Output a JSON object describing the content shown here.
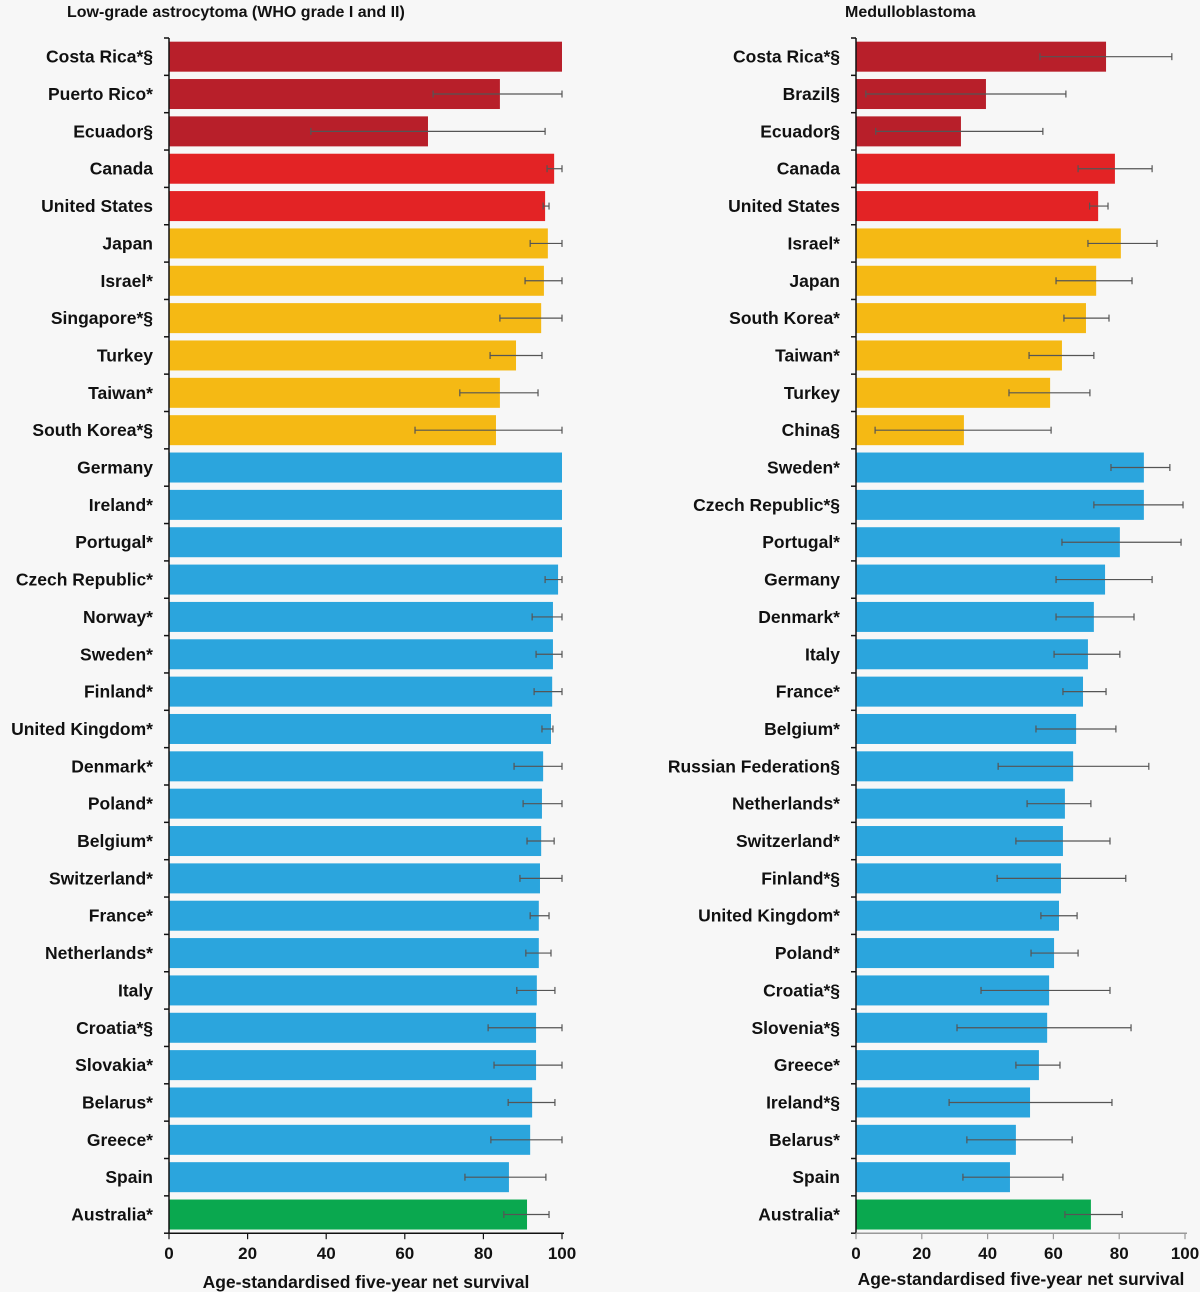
{
  "colors": {
    "dark_red": "#b81f2a",
    "red": "#e32325",
    "gold": "#f5b914",
    "blue": "#2ba5dd",
    "green": "#0aa84f",
    "error_bar": "#555555",
    "axis": "#111111"
  },
  "chart_data": [
    {
      "type": "bar",
      "orientation": "horizontal",
      "title": "Low-grade astrocytoma (WHO grade I and II)",
      "xlabel": "Age-standardised five-year net survival",
      "ylabel": "",
      "xlim": [
        0,
        100
      ],
      "xticks": [
        "0",
        "20",
        "40",
        "60",
        "80",
        "100"
      ],
      "grid": false,
      "legend": "none",
      "categories": [
        "Costa Rica*§",
        "Puerto Rico*",
        "Ecuador§",
        "Canada",
        "United States",
        "Japan",
        "Israel*",
        "Singapore*§",
        "Turkey",
        "Taiwan*",
        "South Korea*§",
        "Germany",
        "Ireland*",
        "Portugal*",
        "Czech Republic*",
        "Norway*",
        "Sweden*",
        "Finland*",
        "United Kingdom*",
        "Denmark*",
        "Poland*",
        "Belgium*",
        "Switzerland*",
        "France*",
        "Netherlands*",
        "Italy",
        "Croatia*§",
        "Slovakia*",
        "Belarus*",
        "Greece*",
        "Spain",
        "Australia*"
      ],
      "groups": [
        "dark_red",
        "dark_red",
        "dark_red",
        "red",
        "red",
        "gold",
        "gold",
        "gold",
        "gold",
        "gold",
        "gold",
        "blue",
        "blue",
        "blue",
        "blue",
        "blue",
        "blue",
        "blue",
        "blue",
        "blue",
        "blue",
        "blue",
        "blue",
        "blue",
        "blue",
        "blue",
        "blue",
        "blue",
        "blue",
        "blue",
        "blue",
        "green"
      ],
      "values": [
        100,
        84.2,
        65.9,
        98.0,
        95.7,
        96.4,
        95.4,
        94.7,
        88.3,
        84.2,
        83.2,
        100,
        100,
        100,
        99.0,
        97.7,
        97.7,
        97.5,
        97.2,
        95.2,
        94.9,
        94.7,
        94.4,
        94.1,
        94.1,
        93.6,
        93.4,
        93.4,
        92.4,
        91.9,
        86.5,
        91.1
      ],
      "ci_low": [
        100,
        67.2,
        36.1,
        96.2,
        95.2,
        91.9,
        90.6,
        84.2,
        81.7,
        74.0,
        62.6,
        100,
        100,
        100,
        95.7,
        92.4,
        93.4,
        92.9,
        94.9,
        87.8,
        90.1,
        91.1,
        89.3,
        91.9,
        90.8,
        88.5,
        81.2,
        82.7,
        86.3,
        81.9,
        75.3,
        85.2
      ],
      "ci_high": [
        100,
        100,
        95.7,
        100,
        96.7,
        100,
        100,
        100,
        94.9,
        93.9,
        100,
        100,
        100,
        100,
        100,
        100,
        100,
        100,
        97.7,
        100,
        100,
        98.0,
        100,
        96.7,
        97.2,
        98.2,
        100,
        100,
        98.2,
        100,
        95.9,
        96.7
      ]
    },
    {
      "type": "bar",
      "orientation": "horizontal",
      "title": "Medulloblastoma",
      "xlabel": "Age-standardised five-year net survival",
      "ylabel": "",
      "xlim": [
        0,
        100
      ],
      "xticks": [
        "0",
        "20",
        "40",
        "60",
        "80",
        "100"
      ],
      "grid": false,
      "legend": "none",
      "categories": [
        "Costa Rica*§",
        "Brazil§",
        "Ecuador§",
        "Canada",
        "United States",
        "Israel*",
        "Japan",
        "South Korea*",
        "Taiwan*",
        "Turkey",
        "China§",
        "Sweden*",
        "Czech Republic*§",
        "Portugal*",
        "Germany",
        "Denmark*",
        "Italy",
        "France*",
        "Belgium*",
        "Russian Federation§",
        "Netherlands*",
        "Switzerland*",
        "Finland*§",
        "United Kingdom*",
        "Poland*",
        "Croatia*§",
        "Slovenia*§",
        "Greece*",
        "Ireland*§",
        "Belarus*",
        "Spain",
        "Australia*"
      ],
      "groups": [
        "dark_red",
        "dark_red",
        "dark_red",
        "red",
        "red",
        "gold",
        "gold",
        "gold",
        "gold",
        "gold",
        "gold",
        "blue",
        "blue",
        "blue",
        "blue",
        "blue",
        "blue",
        "blue",
        "blue",
        "blue",
        "blue",
        "blue",
        "blue",
        "blue",
        "blue",
        "blue",
        "blue",
        "blue",
        "blue",
        "blue",
        "blue",
        "green"
      ],
      "values": [
        76.0,
        39.5,
        31.9,
        78.7,
        73.6,
        80.5,
        73.0,
        69.9,
        62.6,
        59.0,
        32.8,
        87.5,
        87.5,
        80.2,
        75.7,
        72.3,
        70.5,
        69.0,
        66.9,
        66.0,
        63.5,
        62.9,
        62.3,
        61.7,
        60.2,
        58.7,
        58.1,
        55.6,
        52.9,
        48.6,
        46.8,
        71.4
      ],
      "ci_low": [
        55.9,
        3.0,
        6.0,
        67.5,
        71.0,
        70.5,
        60.8,
        63.2,
        52.6,
        46.5,
        5.8,
        77.5,
        72.3,
        62.6,
        60.8,
        60.8,
        60.2,
        62.9,
        54.7,
        43.2,
        52.0,
        48.6,
        42.9,
        56.2,
        53.2,
        38.0,
        30.7,
        48.6,
        28.3,
        33.7,
        32.5,
        63.5
      ],
      "ci_high": [
        96.0,
        63.8,
        56.8,
        90.0,
        76.6,
        91.5,
        83.9,
        76.9,
        72.3,
        71.1,
        59.3,
        95.4,
        99.4,
        98.8,
        90.0,
        84.5,
        80.2,
        76.0,
        79.0,
        89.0,
        71.4,
        77.2,
        82.0,
        67.2,
        67.5,
        77.2,
        83.6,
        62.0,
        77.8,
        65.7,
        62.9,
        80.9
      ]
    }
  ]
}
